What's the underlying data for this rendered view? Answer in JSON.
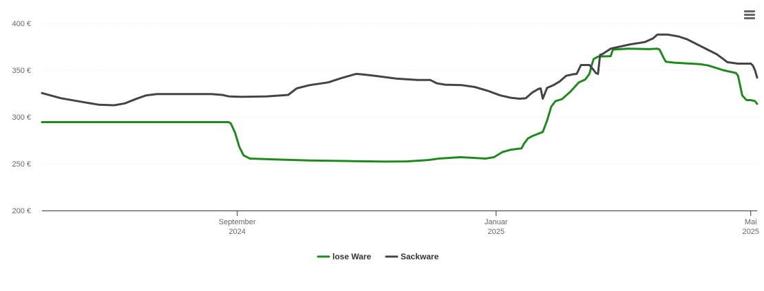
{
  "chart_data": {
    "type": "line",
    "title": "",
    "xlabel": "",
    "ylabel": "",
    "ylim": [
      200,
      400
    ],
    "yticks": [
      {
        "value": 200,
        "label": "200 €"
      },
      {
        "value": 250,
        "label": "250 €"
      },
      {
        "value": 300,
        "label": "300 €"
      },
      {
        "value": 350,
        "label": "350 €"
      },
      {
        "value": 400,
        "label": "400 €"
      }
    ],
    "xlim": [
      "2024-06-01",
      "2025-05-04"
    ],
    "xticks": [
      {
        "date": "2024-09-01",
        "line1": "September",
        "line2": "2024"
      },
      {
        "date": "2025-01-01",
        "line1": "Januar",
        "line2": "2025"
      },
      {
        "date": "2025-05-01",
        "line1": "Mai",
        "line2": "2025"
      }
    ],
    "grid": true,
    "legend_position": "bottom-center",
    "series": [
      {
        "name": "lose Ware",
        "color": "#1e8a1e",
        "points": [
          [
            "2024-06-01",
            294.5
          ],
          [
            "2024-08-28",
            294.5
          ],
          [
            "2024-08-29",
            293.0
          ],
          [
            "2024-08-31",
            283.0
          ],
          [
            "2024-09-02",
            268.0
          ],
          [
            "2024-09-04",
            259.0
          ],
          [
            "2024-09-07",
            255.5
          ],
          [
            "2024-09-20",
            254.5
          ],
          [
            "2024-10-05",
            253.5
          ],
          [
            "2024-10-25",
            252.8
          ],
          [
            "2024-11-10",
            252.3
          ],
          [
            "2024-11-20",
            252.5
          ],
          [
            "2024-11-30",
            254.0
          ],
          [
            "2024-12-05",
            255.5
          ],
          [
            "2024-12-15",
            257.0
          ],
          [
            "2024-12-20",
            256.5
          ],
          [
            "2024-12-27",
            255.5
          ],
          [
            "2024-12-31",
            257.0
          ],
          [
            "2025-01-04",
            262.5
          ],
          [
            "2025-01-08",
            265.0
          ],
          [
            "2025-01-13",
            266.5
          ],
          [
            "2025-01-14",
            271.0
          ],
          [
            "2025-01-16",
            277.0
          ],
          [
            "2025-01-18",
            279.5
          ],
          [
            "2025-01-23",
            284.0
          ],
          [
            "2025-01-25",
            296.0
          ],
          [
            "2025-01-27",
            311.0
          ],
          [
            "2025-01-29",
            317.0
          ],
          [
            "2025-02-01",
            319.0
          ],
          [
            "2025-02-05",
            327.0
          ],
          [
            "2025-02-09",
            337.0
          ],
          [
            "2025-02-12",
            340.0
          ],
          [
            "2025-02-14",
            346.0
          ],
          [
            "2025-02-15",
            355.0
          ],
          [
            "2025-02-16",
            362.0
          ],
          [
            "2025-02-18",
            364.5
          ],
          [
            "2025-02-24",
            365.0
          ],
          [
            "2025-02-25",
            372.0
          ],
          [
            "2025-03-04",
            373.0
          ],
          [
            "2025-03-14",
            372.5
          ],
          [
            "2025-03-18",
            373.0
          ],
          [
            "2025-03-19",
            372.0
          ],
          [
            "2025-03-21",
            363.0
          ],
          [
            "2025-03-22",
            359.0
          ],
          [
            "2025-03-26",
            358.0
          ],
          [
            "2025-04-07",
            356.5
          ],
          [
            "2025-04-11",
            355.0
          ],
          [
            "2025-04-18",
            350.0
          ],
          [
            "2025-04-24",
            347.0
          ],
          [
            "2025-04-25",
            344.0
          ],
          [
            "2025-04-27",
            323.0
          ],
          [
            "2025-04-29",
            318.0
          ],
          [
            "2025-05-01",
            318.0
          ],
          [
            "2025-05-03",
            317.0
          ],
          [
            "2025-05-04",
            314.0
          ]
        ]
      },
      {
        "name": "Sackware",
        "color": "#434348",
        "points": [
          [
            "2024-06-01",
            325.5
          ],
          [
            "2024-06-10",
            320.0
          ],
          [
            "2024-06-20",
            316.0
          ],
          [
            "2024-06-28",
            313.0
          ],
          [
            "2024-07-05",
            312.5
          ],
          [
            "2024-07-10",
            314.5
          ],
          [
            "2024-07-15",
            319.0
          ],
          [
            "2024-07-20",
            323.0
          ],
          [
            "2024-07-25",
            324.5
          ],
          [
            "2024-08-05",
            324.5
          ],
          [
            "2024-08-20",
            324.5
          ],
          [
            "2024-08-25",
            323.5
          ],
          [
            "2024-08-28",
            322.0
          ],
          [
            "2024-09-03",
            321.5
          ],
          [
            "2024-09-15",
            322.0
          ],
          [
            "2024-09-25",
            323.5
          ],
          [
            "2024-09-29",
            330.5
          ],
          [
            "2024-10-05",
            334.0
          ],
          [
            "2024-10-14",
            337.0
          ],
          [
            "2024-10-20",
            341.5
          ],
          [
            "2024-10-27",
            346.0
          ],
          [
            "2024-10-30",
            345.5
          ],
          [
            "2024-11-05",
            344.0
          ],
          [
            "2024-11-15",
            341.0
          ],
          [
            "2024-11-25",
            339.5
          ],
          [
            "2024-12-01",
            339.5
          ],
          [
            "2024-12-04",
            336.0
          ],
          [
            "2024-12-08",
            334.5
          ],
          [
            "2024-12-16",
            334.0
          ],
          [
            "2024-12-22",
            332.0
          ],
          [
            "2024-12-28",
            328.0
          ],
          [
            "2025-01-03",
            323.0
          ],
          [
            "2025-01-08",
            320.5
          ],
          [
            "2025-01-12",
            319.5
          ],
          [
            "2025-01-15",
            320.0
          ],
          [
            "2025-01-18",
            326.0
          ],
          [
            "2025-01-21",
            330.0
          ],
          [
            "2025-01-22",
            330.5
          ],
          [
            "2025-01-23",
            319.5
          ],
          [
            "2025-01-25",
            331.0
          ],
          [
            "2025-01-28",
            334.0
          ],
          [
            "2025-01-31",
            338.0
          ],
          [
            "2025-02-03",
            344.0
          ],
          [
            "2025-02-06",
            345.5
          ],
          [
            "2025-02-08",
            346.0
          ],
          [
            "2025-02-10",
            355.5
          ],
          [
            "2025-02-14",
            355.5
          ],
          [
            "2025-02-16",
            350.0
          ],
          [
            "2025-02-17",
            347.0
          ],
          [
            "2025-02-18",
            346.0
          ],
          [
            "2025-02-19",
            366.5
          ],
          [
            "2025-02-20",
            367.0
          ],
          [
            "2025-02-24",
            373.0
          ],
          [
            "2025-03-05",
            377.5
          ],
          [
            "2025-03-12",
            380.0
          ],
          [
            "2025-03-16",
            384.0
          ],
          [
            "2025-03-18",
            388.0
          ],
          [
            "2025-03-23",
            388.0
          ],
          [
            "2025-03-28",
            386.0
          ],
          [
            "2025-04-01",
            383.0
          ],
          [
            "2025-04-08",
            375.0
          ],
          [
            "2025-04-15",
            367.0
          ],
          [
            "2025-04-18",
            362.0
          ],
          [
            "2025-04-20",
            358.5
          ],
          [
            "2025-04-25",
            357.0
          ],
          [
            "2025-05-01",
            357.0
          ],
          [
            "2025-05-02",
            355.0
          ],
          [
            "2025-05-03",
            350.0
          ],
          [
            "2025-05-04",
            342.0
          ]
        ]
      }
    ]
  }
}
